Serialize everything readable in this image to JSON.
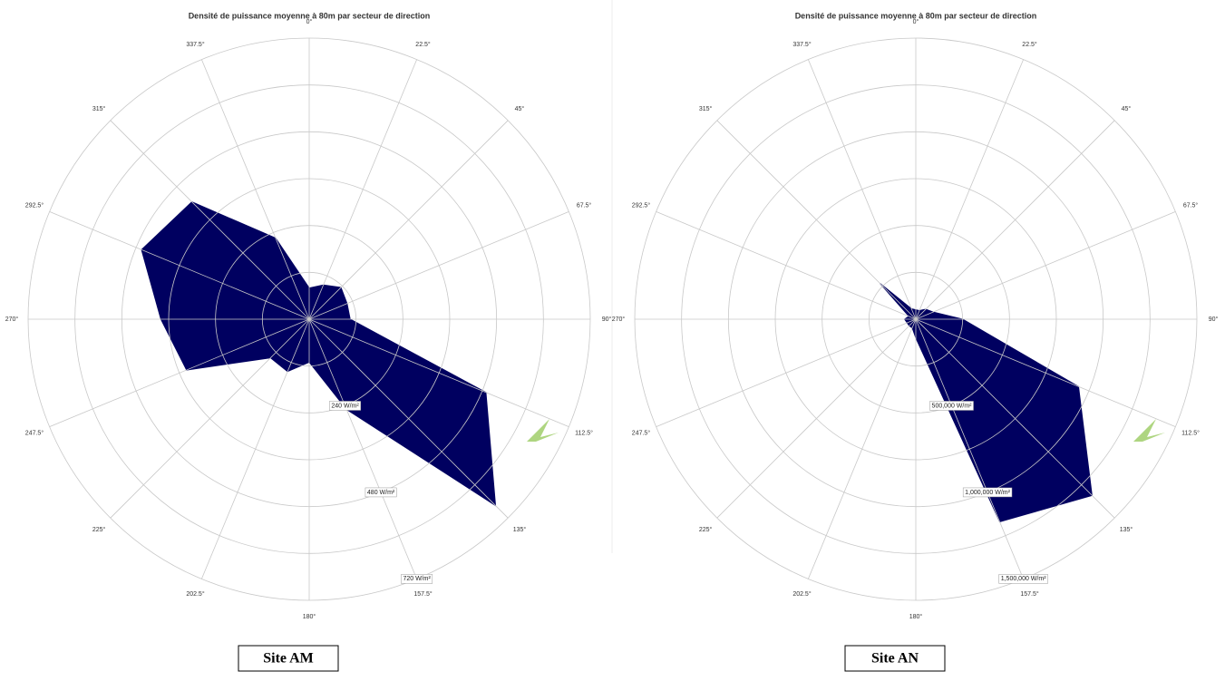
{
  "chart_data": [
    {
      "type": "radar",
      "title": "Densité de puissance moyenne à 80m par secteur de direction",
      "categories": [
        "0°",
        "22.5°",
        "45°",
        "67.5°",
        "90°",
        "112.5°",
        "135°",
        "157.5°",
        "180°",
        "202.5°",
        "225°",
        "247.5°",
        "270°",
        "292.5°",
        "315°",
        "337.5°"
      ],
      "values": [
        80,
        95,
        115,
        105,
        105,
        490,
        675,
        250,
        110,
        145,
        140,
        340,
        380,
        465,
        425,
        225
      ],
      "color": "#000060",
      "ylim": [
        0,
        720
      ],
      "yticks": [
        {
          "value": 120,
          "label": null
        },
        {
          "value": 240,
          "label": "240 W/m²"
        },
        {
          "value": 360,
          "label": null
        },
        {
          "value": 480,
          "label": "480 W/m²"
        },
        {
          "value": 600,
          "label": null
        },
        {
          "value": 720,
          "label": "720 W/m²"
        }
      ],
      "grid": true,
      "caption": "Site AM"
    },
    {
      "type": "radar",
      "title": "Densité de puissance moyenne à 80m par secteur de direction",
      "categories": [
        "0°",
        "22.5°",
        "45°",
        "67.5°",
        "90°",
        "112.5°",
        "135°",
        "157.5°",
        "180°",
        "202.5°",
        "225°",
        "247.5°",
        "270°",
        "292.5°",
        "315°",
        "337.5°"
      ],
      "values": [
        50000,
        50000,
        75000,
        100000,
        250000,
        940000,
        1330000,
        1170000,
        100000,
        50000,
        50000,
        50000,
        60000,
        40000,
        270000,
        60000
      ],
      "color": "#000060",
      "ylim": [
        0,
        1500000
      ],
      "yticks": [
        {
          "value": 250000,
          "label": null
        },
        {
          "value": 500000,
          "label": "500,000 W/m²"
        },
        {
          "value": 750000,
          "label": null
        },
        {
          "value": 1000000,
          "label": "1,000,000 W/m²"
        },
        {
          "value": 1250000,
          "label": null
        },
        {
          "value": 1500000,
          "label": "1,500,000 W/m²"
        }
      ],
      "grid": true,
      "caption": "Site AN"
    }
  ]
}
